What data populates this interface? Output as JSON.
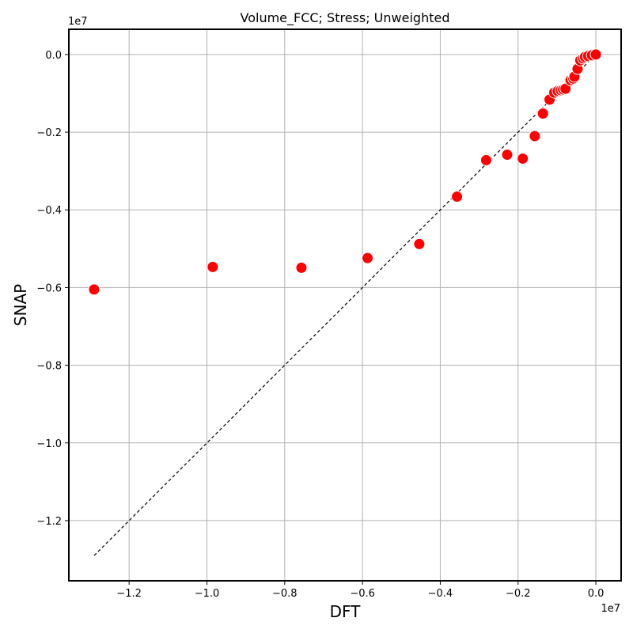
{
  "chart_data": {
    "type": "scatter",
    "title": "Volume_FCC; Stress; Unweighted",
    "xlabel": "DFT",
    "ylabel": "SNAP",
    "x_exponent_label": "1e7",
    "y_exponent_label": "1e7",
    "scale": 10000000,
    "xlim": [
      -1.355,
      0.065
    ],
    "ylim": [
      -1.355,
      0.065
    ],
    "xticks": [
      -1.2,
      -1.0,
      -0.8,
      -0.6,
      -0.4,
      -0.2,
      0.0
    ],
    "xtick_labels": [
      "−1.2",
      "−1.0",
      "−0.8",
      "−0.6",
      "−0.4",
      "−0.2",
      "0.0"
    ],
    "yticks": [
      0.0,
      -0.2,
      -0.4,
      -0.6,
      -0.8,
      -1.0,
      -1.2
    ],
    "ytick_labels": [
      "0.0",
      "−0.2",
      "−0.4",
      "−0.6",
      "−0.8",
      "−1.0",
      "−1.2"
    ],
    "grid": true,
    "marker_color": "#ff0000",
    "marker_edge_color": "#ffffff",
    "reference_line": {
      "style": "dashed",
      "color": "#000000",
      "x": [
        -1.29,
        0.0
      ],
      "y": [
        -1.29,
        0.0
      ]
    },
    "points": [
      {
        "x": -1.29,
        "y": -0.605
      },
      {
        "x": -0.985,
        "y": -0.547
      },
      {
        "x": -0.757,
        "y": -0.549
      },
      {
        "x": -0.587,
        "y": -0.524
      },
      {
        "x": -0.454,
        "y": -0.488
      },
      {
        "x": -0.357,
        "y": -0.366
      },
      {
        "x": -0.282,
        "y": -0.272
      },
      {
        "x": -0.228,
        "y": -0.258
      },
      {
        "x": -0.188,
        "y": -0.268
      },
      {
        "x": -0.157,
        "y": -0.21
      },
      {
        "x": -0.136,
        "y": -0.152
      },
      {
        "x": -0.119,
        "y": -0.116
      },
      {
        "x": -0.107,
        "y": -0.098
      },
      {
        "x": -0.098,
        "y": -0.094
      },
      {
        "x": -0.09,
        "y": -0.092
      },
      {
        "x": -0.084,
        "y": -0.09
      },
      {
        "x": -0.078,
        "y": -0.088
      },
      {
        "x": -0.065,
        "y": -0.066
      },
      {
        "x": -0.058,
        "y": -0.062
      },
      {
        "x": -0.055,
        "y": -0.057
      },
      {
        "x": -0.047,
        "y": -0.037
      },
      {
        "x": -0.04,
        "y": -0.015
      },
      {
        "x": -0.033,
        "y": -0.01
      },
      {
        "x": -0.028,
        "y": -0.006
      },
      {
        "x": -0.02,
        "y": -0.004
      },
      {
        "x": -0.01,
        "y": -0.002
      },
      {
        "x": 0.0,
        "y": 0.0
      }
    ]
  }
}
